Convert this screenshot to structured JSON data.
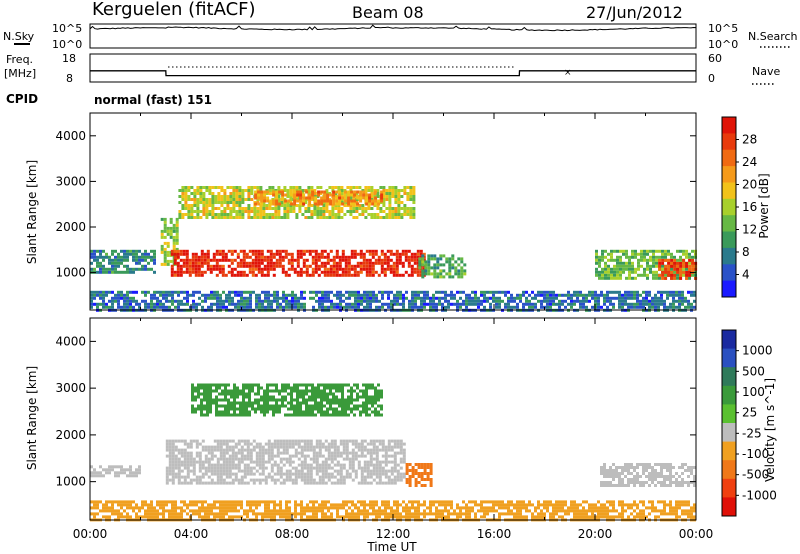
{
  "header": {
    "station": "Kerguelen (fitACF)",
    "beam": "Beam 08",
    "date": "27/Jun/2012"
  },
  "side_labels": {
    "nsky": "N.Sky",
    "freq_line1": "Freq.",
    "freq_line2": "[MHz]",
    "cpid": "CPID",
    "nsearch": "N.Search",
    "nave": "Nave",
    "nsky_top": "10^5",
    "nsky_bottom": "10^0",
    "nsearch_top": "10^5",
    "nsearch_bottom": "10^0",
    "freq_top": "18",
    "freq_bottom": "8",
    "nave_top": "60",
    "nave_bottom": "0"
  },
  "cpid_text": "normal (fast) 151",
  "x_axis": {
    "label": "Time UT",
    "ticks": [
      "00:00",
      "04:00",
      "08:00",
      "12:00",
      "16:00",
      "20:00",
      "00:00"
    ]
  },
  "y_axis": {
    "label": "Slant Range [km]",
    "ticks": [
      "1000",
      "2000",
      "3000",
      "4000"
    ]
  },
  "colorbars": {
    "power": {
      "label": "Power [dB]",
      "ticks": [
        "4",
        "8",
        "12",
        "16",
        "20",
        "24",
        "28"
      ],
      "colors": [
        "#1a1aff",
        "#2a52c8",
        "#2a7a8c",
        "#3a9a5a",
        "#66b844",
        "#a8d02c",
        "#f2c21a",
        "#f59a1a",
        "#f06a12",
        "#e83a0c",
        "#e01408"
      ]
    },
    "velocity": {
      "label": "Velocity [m s^-1]",
      "ticks": [
        "1000",
        "500",
        "100",
        "25",
        "-25",
        "-100",
        "-500",
        "-1000"
      ],
      "colors": [
        "#1a2aa0",
        "#2a50c0",
        "#2f7a5a",
        "#3a9a3a",
        "#5ac030",
        "#bdbdbd",
        "#f0a020",
        "#f07818",
        "#f04010",
        "#e01008"
      ]
    }
  },
  "chart_data": [
    {
      "type": "line",
      "title": "N.Sky / N.Search",
      "x": [
        "00:00",
        "04:00",
        "08:00",
        "12:00",
        "16:00",
        "20:00",
        "24:00"
      ],
      "series": [
        {
          "name": "N.Sky",
          "values": [
            4.0,
            4.1,
            4.3,
            4.1,
            4.0,
            4.0,
            4.2
          ]
        }
      ],
      "ylim": [
        0,
        5
      ],
      "log_scale": true
    },
    {
      "type": "line",
      "title": "Freq / Nave",
      "x": [
        "00:00",
        "03:00",
        "03:01",
        "17:00",
        "17:01",
        "24:00"
      ],
      "series": [
        {
          "name": "Freq.",
          "values": [
            12.0,
            12.0,
            10.3,
            10.3,
            12.0,
            12.0
          ]
        }
      ],
      "ylim": [
        8,
        18
      ]
    },
    {
      "type": "heatmap",
      "title": "Power [dB]",
      "xlim": [
        0,
        24
      ],
      "ylim": [
        180,
        4500
      ],
      "regions": [
        {
          "t_start": 0.0,
          "t_end": 2.5,
          "r_start": 1000,
          "r_end": 1500,
          "value": 7
        },
        {
          "t_start": 2.8,
          "t_end": 3.4,
          "r_start": 1200,
          "r_end": 2200,
          "value": 14
        },
        {
          "t_start": 3.2,
          "t_end": 13.2,
          "r_start": 950,
          "r_end": 1500,
          "value": 29
        },
        {
          "t_start": 3.5,
          "t_end": 12.8,
          "r_start": 2200,
          "r_end": 2900,
          "value": 16
        },
        {
          "t_start": 6.5,
          "t_end": 11.5,
          "r_start": 2500,
          "r_end": 2800,
          "value": 22
        },
        {
          "t_start": 13.0,
          "t_end": 14.8,
          "r_start": 900,
          "r_end": 1400,
          "value": 10
        },
        {
          "t_start": 20.0,
          "t_end": 24.0,
          "r_start": 900,
          "r_end": 1500,
          "value": 12
        },
        {
          "t_start": 22.5,
          "t_end": 24.0,
          "r_start": 850,
          "r_end": 1300,
          "value": 27
        },
        {
          "t_start": 0.0,
          "t_end": 24.0,
          "r_start": 180,
          "r_end": 600,
          "value": 5
        }
      ]
    },
    {
      "type": "heatmap",
      "title": "Velocity [m s-1]",
      "xlim": [
        0,
        24
      ],
      "ylim": [
        180,
        4500
      ],
      "regions": [
        {
          "t_start": 3.0,
          "t_end": 12.5,
          "r_start": 1000,
          "r_end": 1900,
          "value": 0
        },
        {
          "t_start": 4.0,
          "t_end": 11.5,
          "r_start": 2400,
          "r_end": 3100,
          "value": 80
        },
        {
          "t_start": 12.5,
          "t_end": 13.5,
          "r_start": 900,
          "r_end": 1400,
          "value": -150
        },
        {
          "t_start": 20.2,
          "t_end": 24.0,
          "r_start": 900,
          "r_end": 1400,
          "value": 0
        },
        {
          "t_start": 0.0,
          "t_end": 2.0,
          "r_start": 1150,
          "r_end": 1350,
          "value": 0
        },
        {
          "t_start": 0.0,
          "t_end": 24.0,
          "r_start": 180,
          "r_end": 600,
          "value": -60
        }
      ]
    }
  ]
}
